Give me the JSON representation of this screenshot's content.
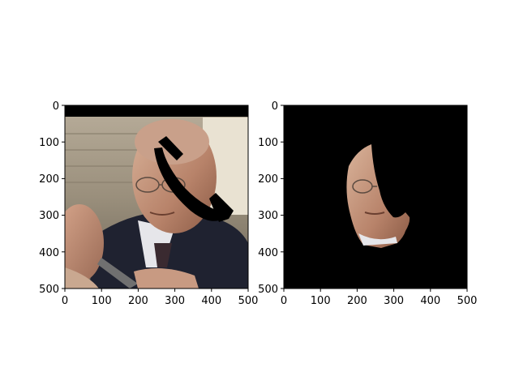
{
  "figure": {
    "panels": [
      {
        "name": "left-panel",
        "content": "photo of a bald man in suit with a black phone-shaped occlusion; second man at lower-left; black band across top",
        "x_ticks": [
          "0",
          "100",
          "200",
          "300",
          "400",
          "500"
        ],
        "y_ticks": [
          "0",
          "100",
          "200",
          "300",
          "400",
          "500"
        ],
        "xlim": [
          0,
          500
        ],
        "ylim": [
          500,
          0
        ]
      },
      {
        "name": "right-panel",
        "content": "segmented face region on black background with a black cut-out",
        "x_ticks": [
          "0",
          "100",
          "200",
          "300",
          "400",
          "500"
        ],
        "y_ticks": [
          "0",
          "100",
          "200",
          "300",
          "400",
          "500"
        ],
        "xlim": [
          0,
          500
        ],
        "ylim": [
          500,
          0
        ]
      }
    ]
  }
}
